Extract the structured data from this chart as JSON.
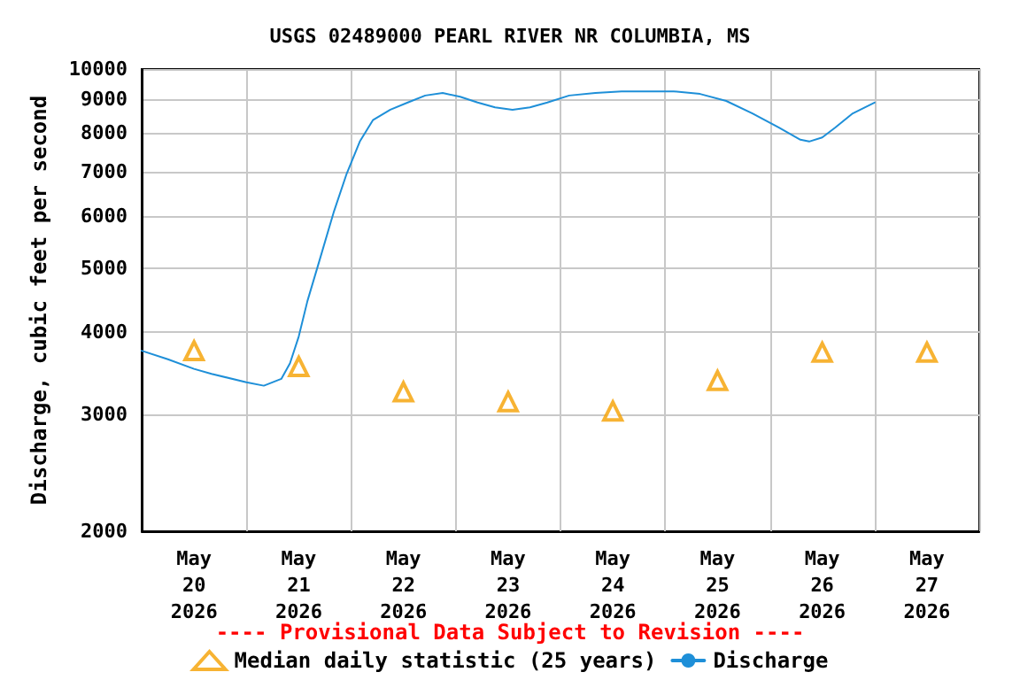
{
  "chart_data": {
    "type": "line",
    "title": "USGS 02489000 PEARL RIVER NR COLUMBIA, MS",
    "ylabel": "Discharge, cubic feet per second",
    "annotations": [
      "---- Provisional Data Subject to Revision ----"
    ],
    "log": "y",
    "grid": true,
    "legend": "bottom",
    "xlim": [
      "2026-05-20T00:00",
      "2026-05-28T00:00"
    ],
    "xticks": [
      {
        "value": "2026-05-20T00:00",
        "label": null
      },
      {
        "value": "2026-05-20T12:00",
        "label": "May\n20\n2026"
      },
      {
        "value": "2026-05-21T00:00",
        "label": null
      },
      {
        "value": "2026-05-21T12:00",
        "label": "May\n21\n2026"
      },
      {
        "value": "2026-05-22T00:00",
        "label": null
      },
      {
        "value": "2026-05-22T12:00",
        "label": "May\n22\n2026"
      },
      {
        "value": "2026-05-23T00:00",
        "label": null
      },
      {
        "value": "2026-05-23T12:00",
        "label": "May\n23\n2026"
      },
      {
        "value": "2026-05-24T00:00",
        "label": null
      },
      {
        "value": "2026-05-24T12:00",
        "label": "May\n24\n2026"
      },
      {
        "value": "2026-05-25T00:00",
        "label": null
      },
      {
        "value": "2026-05-25T12:00",
        "label": "May\n25\n2026"
      },
      {
        "value": "2026-05-26T00:00",
        "label": null
      },
      {
        "value": "2026-05-26T12:00",
        "label": "May\n26\n2026"
      },
      {
        "value": "2026-05-27T00:00",
        "label": null
      },
      {
        "value": "2026-05-27T12:00",
        "label": "May\n27\n2026"
      },
      {
        "value": "2026-05-28T00:00",
        "label": null
      }
    ],
    "ylim": [
      2000,
      10000
    ],
    "yticks": [
      2000,
      3000,
      4000,
      5000,
      6000,
      7000,
      8000,
      9000,
      10000
    ],
    "series": [
      {
        "name": "Median daily statistic (25 years)",
        "type": "scatter",
        "marker": "triangle",
        "color": "#f5a000",
        "x": [
          "2026-05-20T12:00",
          "2026-05-21T12:00",
          "2026-05-22T12:00",
          "2026-05-23T12:00",
          "2026-05-24T12:00",
          "2026-05-25T12:00",
          "2026-05-26T12:00",
          "2026-05-27T12:00"
        ],
        "values": [
          3750,
          3550,
          3250,
          3140,
          3040,
          3380,
          3730,
          3730
        ]
      },
      {
        "name": "Discharge",
        "type": "line",
        "marker": "none",
        "line_style": "solid",
        "color": "#1e8fd8",
        "x": [
          "2026-05-20T00:00",
          "2026-05-20T06:00",
          "2026-05-20T12:00",
          "2026-05-20T16:00",
          "2026-05-21T00:00",
          "2026-05-21T04:00",
          "2026-05-21T08:00",
          "2026-05-21T10:00",
          "2026-05-21T12:00",
          "2026-05-21T14:00",
          "2026-05-21T17:00",
          "2026-05-21T20:00",
          "2026-05-21T23:00",
          "2026-05-22T02:00",
          "2026-05-22T05:00",
          "2026-05-22T09:00",
          "2026-05-22T13:00",
          "2026-05-22T17:00",
          "2026-05-22T21:00",
          "2026-05-23T01:00",
          "2026-05-23T05:00",
          "2026-05-23T09:00",
          "2026-05-23T13:00",
          "2026-05-23T17:00",
          "2026-05-23T21:00",
          "2026-05-24T02:00",
          "2026-05-24T08:00",
          "2026-05-24T14:00",
          "2026-05-24T20:00",
          "2026-05-25T02:00",
          "2026-05-25T08:00",
          "2026-05-25T14:00",
          "2026-05-25T20:00",
          "2026-05-26T02:00",
          "2026-05-26T07:00",
          "2026-05-26T09:00",
          "2026-05-26T12:00",
          "2026-05-26T15:00",
          "2026-05-26T19:00",
          "2026-05-27T00:00"
        ],
        "values": [
          3750,
          3640,
          3520,
          3460,
          3360,
          3320,
          3400,
          3590,
          3940,
          4460,
          5200,
          6070,
          6950,
          7770,
          8370,
          8680,
          8900,
          9120,
          9200,
          9080,
          8900,
          8750,
          8680,
          8750,
          8900,
          9120,
          9200,
          9250,
          9250,
          9250,
          9170,
          8950,
          8570,
          8160,
          7820,
          7770,
          7880,
          8160,
          8570,
          8900
        ]
      }
    ]
  }
}
